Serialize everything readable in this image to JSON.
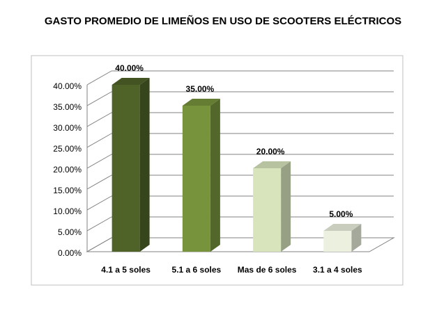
{
  "chart_data": {
    "type": "bar3d",
    "title": "GASTO PROMEDIO DE LIMEÑOS EN USO DE SCOOTERS ELÉCTRICOS",
    "categories": [
      "4.1 a 5 soles",
      "5.1 a 6 soles",
      "Mas de 6 soles",
      "3.1 a 4 soles"
    ],
    "values": [
      40,
      35,
      20,
      5
    ],
    "value_labels": [
      "40.00%",
      "35.00%",
      "20.00%",
      "5.00%"
    ],
    "colors": [
      "#4f6228",
      "#77933c",
      "#d7e4bc",
      "#ebf1de"
    ],
    "ylim": [
      0,
      40
    ],
    "yticks": [
      {
        "value": 0,
        "label": "0.00%"
      },
      {
        "value": 5,
        "label": "5.00%"
      },
      {
        "value": 10,
        "label": "10.00%"
      },
      {
        "value": 15,
        "label": "15.00%"
      },
      {
        "value": 20,
        "label": "20.00%"
      },
      {
        "value": 25,
        "label": "25.00%"
      },
      {
        "value": 30,
        "label": "30.00%"
      },
      {
        "value": 35,
        "label": "35.00%"
      },
      {
        "value": 40,
        "label": "40.00%"
      }
    ],
    "grid": true
  }
}
